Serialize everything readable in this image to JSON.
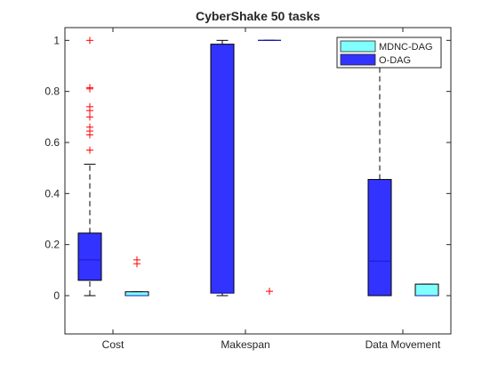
{
  "chart_data": {
    "type": "box",
    "title": "CyberShake 50 tasks",
    "xlabel": "",
    "ylabel": "",
    "categories": [
      "Cost",
      "Makespan",
      "Data Movement"
    ],
    "ylim": [
      -0.15,
      1.05
    ],
    "yticks": [
      "0",
      "0.2",
      "0.4",
      "0.6",
      "0.8",
      "1"
    ],
    "legend_position": "top-right",
    "series": [
      {
        "name": "O-DAG",
        "color": "#3333ff",
        "boxes": [
          {
            "category": "Cost",
            "whisker_low": 0.0,
            "q1": 0.06,
            "median": 0.14,
            "q3": 0.245,
            "whisker_high": 0.515,
            "outliers": [
              0.57,
              0.63,
              0.645,
              0.66,
              0.7,
              0.725,
              0.74,
              0.81,
              0.815,
              1.0
            ]
          },
          {
            "category": "Makespan",
            "whisker_low": 0.0,
            "q1": 0.01,
            "median": 0.01,
            "q3": 0.985,
            "whisker_high": 1.0,
            "outliers": []
          },
          {
            "category": "Data Movement",
            "whisker_low": 0.0,
            "q1": 0.0,
            "median": 0.135,
            "q3": 0.455,
            "whisker_high": 1.0,
            "outliers": []
          }
        ]
      },
      {
        "name": "MDNC-DAG",
        "color": "#80ffff",
        "boxes": [
          {
            "category": "Cost",
            "whisker_low": 0.0,
            "q1": 0.0,
            "median": 0.0,
            "q3": 0.015,
            "whisker_high": 0.015,
            "outliers": [
              0.125,
              0.14
            ]
          },
          {
            "category": "Makespan",
            "whisker_low": 1.0,
            "q1": 1.0,
            "median": 1.0,
            "q3": 1.0,
            "whisker_high": 1.0,
            "outliers": [
              0.017
            ]
          },
          {
            "category": "Data Movement",
            "whisker_low": 0.0,
            "q1": 0.0,
            "median": 0.0,
            "q3": 0.045,
            "whisker_high": 0.045,
            "outliers": []
          }
        ]
      }
    ],
    "legend": [
      "MDNC-DAG",
      "O-DAG"
    ]
  },
  "style": {
    "outlier_color": "#ff0000",
    "median_color": "#1a1acc",
    "axis_color": "#262626"
  }
}
